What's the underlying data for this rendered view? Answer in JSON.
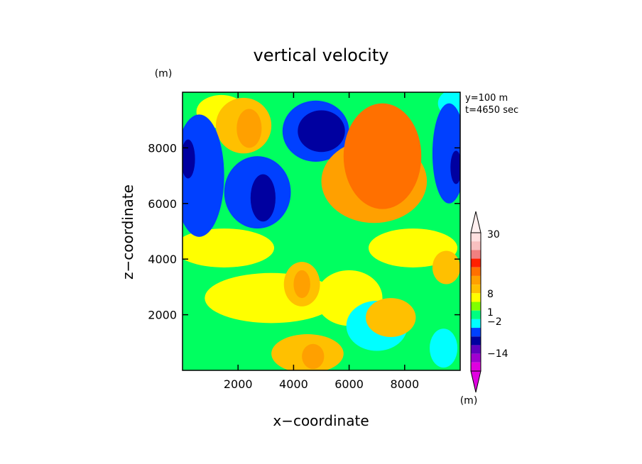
{
  "chart_data": {
    "type": "heatmap",
    "title": "vertical velocity",
    "xlabel": "x−coordinate",
    "ylabel": "z−coordinate",
    "unit_x": "(m)",
    "unit_y": "(m)",
    "info": [
      "y=100 m",
      "t=4650 sec"
    ],
    "xlim": [
      0,
      10000
    ],
    "ylim": [
      0,
      10000
    ],
    "xticks": [
      2000,
      4000,
      6000,
      8000
    ],
    "yticks": [
      2000,
      4000,
      6000,
      8000
    ],
    "xtick_labels": [
      "2000",
      "4000",
      "6000",
      "8000"
    ],
    "ytick_labels": [
      "2000",
      "4000",
      "6000",
      "8000"
    ],
    "colorbar": {
      "unit": "(m)",
      "labels": [
        "30",
        "8",
        "1",
        "−2",
        "−14"
      ],
      "label_levels": [
        30,
        8,
        1,
        -2,
        -14
      ],
      "colors_top_to_bottom": [
        "#ffe0e0",
        "#f8c0c0",
        "#f08080",
        "#ff2000",
        "#ff7000",
        "#ffa000",
        "#ffc000",
        "#ffff00",
        "#80ff00",
        "#00ff80",
        "#00ffff",
        "#0040ff",
        "#0000a0",
        "#6000c0",
        "#a000d0",
        "#e000e0"
      ]
    },
    "field_levels": {
      "magenta": -14,
      "purple": -10,
      "navy": -6,
      "blue": -3,
      "cyan": -1.5,
      "green": 0,
      "yellow": 0.5,
      "gold": 1.5,
      "amber": 3,
      "orange": 6
    },
    "blobs": [
      {
        "x": 7200,
        "z": 7700,
        "rx": 1400,
        "rz": 1900,
        "level": "orange"
      },
      {
        "x": 6900,
        "z": 6800,
        "rx": 1900,
        "rz": 1500,
        "level": "amber"
      },
      {
        "x": 5000,
        "z": 8600,
        "rx": 850,
        "rz": 750,
        "level": "navy"
      },
      {
        "x": 4800,
        "z": 8600,
        "rx": 1200,
        "rz": 1100,
        "level": "blue"
      },
      {
        "x": 2700,
        "z": 6400,
        "rx": 1200,
        "rz": 1300,
        "level": "blue"
      },
      {
        "x": 2900,
        "z": 6200,
        "rx": 450,
        "rz": 850,
        "level": "navy"
      },
      {
        "x": 600,
        "z": 7000,
        "rx": 900,
        "rz": 2200,
        "level": "blue"
      },
      {
        "x": 200,
        "z": 7600,
        "rx": 250,
        "rz": 700,
        "level": "navy"
      },
      {
        "x": 9600,
        "z": 7800,
        "rx": 600,
        "rz": 1800,
        "level": "blue"
      },
      {
        "x": 9850,
        "z": 7300,
        "rx": 200,
        "rz": 600,
        "level": "navy"
      },
      {
        "x": 2200,
        "z": 8800,
        "rx": 1000,
        "rz": 1000,
        "level": "gold"
      },
      {
        "x": 2400,
        "z": 8700,
        "rx": 450,
        "rz": 700,
        "level": "amber"
      },
      {
        "x": 4300,
        "z": 3100,
        "rx": 650,
        "rz": 800,
        "level": "gold"
      },
      {
        "x": 4300,
        "z": 3100,
        "rx": 300,
        "rz": 500,
        "level": "amber"
      },
      {
        "x": 4500,
        "z": 600,
        "rx": 1300,
        "rz": 700,
        "level": "gold"
      },
      {
        "x": 4700,
        "z": 500,
        "rx": 400,
        "rz": 450,
        "level": "amber"
      },
      {
        "x": 7500,
        "z": 1900,
        "rx": 900,
        "rz": 700,
        "level": "gold"
      },
      {
        "x": 7000,
        "z": 1600,
        "rx": 1100,
        "rz": 900,
        "level": "cyan"
      },
      {
        "x": 9400,
        "z": 800,
        "rx": 500,
        "rz": 700,
        "level": "cyan"
      },
      {
        "x": 9500,
        "z": 3700,
        "rx": 500,
        "rz": 600,
        "level": "gold"
      },
      {
        "x": 1400,
        "z": 9300,
        "rx": 900,
        "rz": 600,
        "level": "yellow"
      },
      {
        "x": 3200,
        "z": 2600,
        "rx": 2400,
        "rz": 900,
        "level": "yellow"
      },
      {
        "x": 1500,
        "z": 4400,
        "rx": 1800,
        "rz": 700,
        "level": "yellow"
      },
      {
        "x": 8300,
        "z": 4400,
        "rx": 1600,
        "rz": 700,
        "level": "yellow"
      },
      {
        "x": 6000,
        "z": 2600,
        "rx": 1200,
        "rz": 1000,
        "level": "yellow"
      },
      {
        "x": 9800,
        "z": 9600,
        "rx": 600,
        "rz": 500,
        "level": "cyan"
      }
    ]
  }
}
